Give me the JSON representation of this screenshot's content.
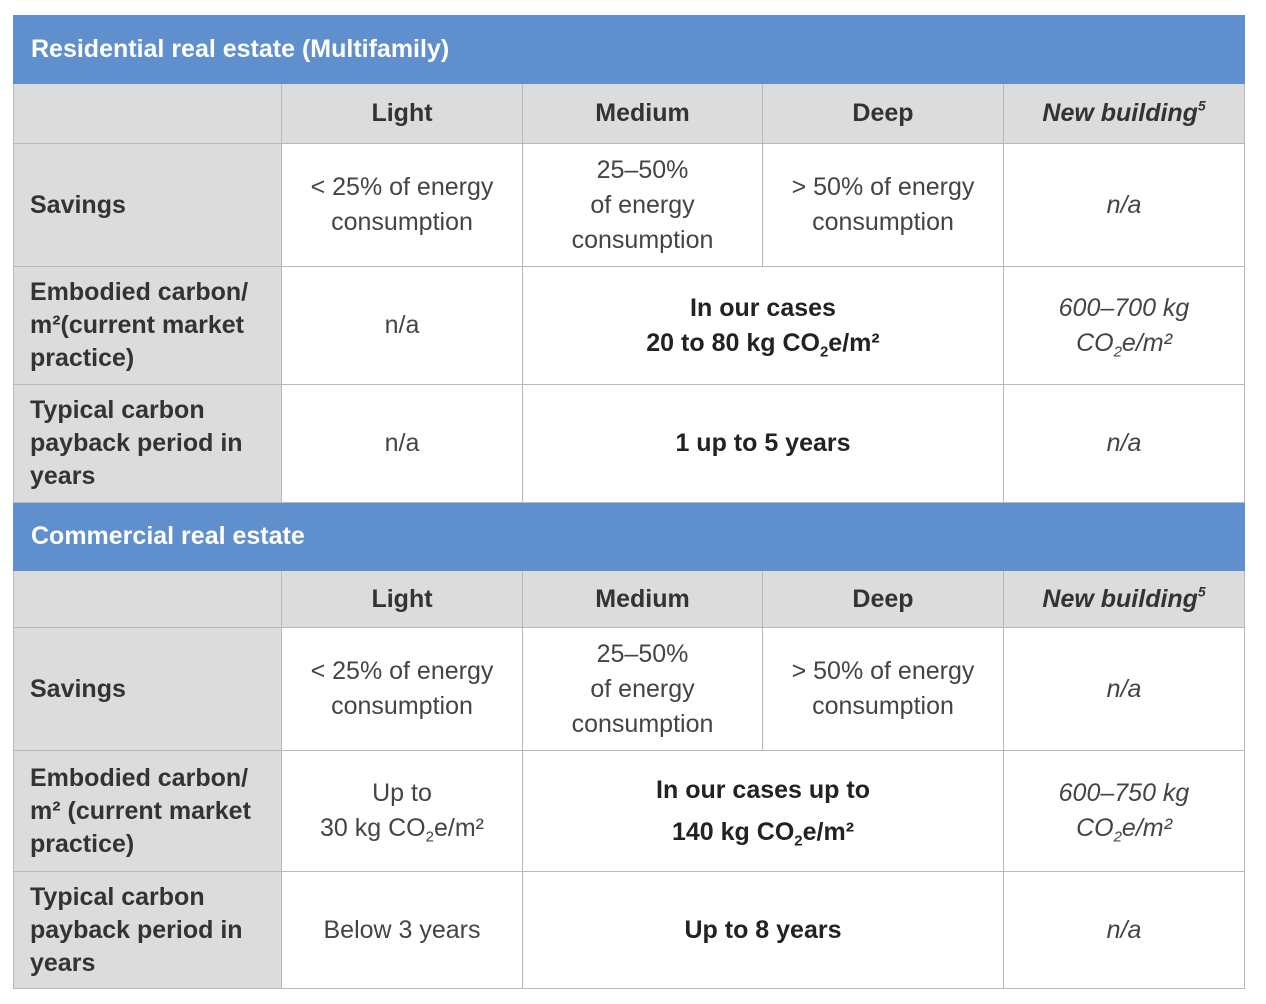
{
  "sections": [
    {
      "title": "Residential real estate (Multifamily)",
      "columns": [
        "Light",
        "Medium",
        "Deep",
        "New building",
        "5"
      ],
      "savings": {
        "label": "Savings",
        "light": [
          "< 25% of energy",
          "consumption"
        ],
        "medium": [
          "25–50%",
          "of energy",
          "consumption"
        ],
        "deep": [
          "> 50% of energy",
          "consumption"
        ],
        "new": "n/a"
      },
      "embodied": {
        "label_lines": [
          "Embodied carbon/",
          "m²(current market",
          "practice)"
        ],
        "light": "n/a",
        "medium_deep": [
          "In our cases",
          "20 to 80 kg CO",
          "2",
          "e/m²"
        ],
        "new": [
          "600–700 kg",
          "CO",
          "2",
          "e/m²"
        ]
      },
      "payback": {
        "label_lines": [
          "Typical carbon",
          "payback period in",
          "years"
        ],
        "light": "n/a",
        "medium_deep": "1 up to 5 years",
        "new": "n/a"
      }
    },
    {
      "title": "Commercial real estate",
      "columns": [
        "Light",
        "Medium",
        "Deep",
        "New building",
        "5"
      ],
      "savings": {
        "label": "Savings",
        "light": [
          "< 25% of energy",
          "consumption"
        ],
        "medium": [
          "25–50%",
          "of energy",
          "consumption"
        ],
        "deep": [
          "> 50% of energy",
          "consumption"
        ],
        "new": "n/a"
      },
      "embodied": {
        "label_lines": [
          "Embodied carbon/",
          "m² (current market",
          "practice)"
        ],
        "light": [
          "Up to",
          "30 kg CO",
          "2",
          "e/m²"
        ],
        "medium_deep": [
          "In our cases up to",
          "140 kg CO",
          "2",
          "e/m²"
        ],
        "new": [
          "600–750 kg",
          "CO",
          "2",
          "e/m²"
        ]
      },
      "payback": {
        "label_lines": [
          "Typical carbon",
          "payback period in",
          "years"
        ],
        "light": "Below 3 years",
        "medium_deep": "Up to 8 years",
        "new": "n/a"
      }
    }
  ]
}
